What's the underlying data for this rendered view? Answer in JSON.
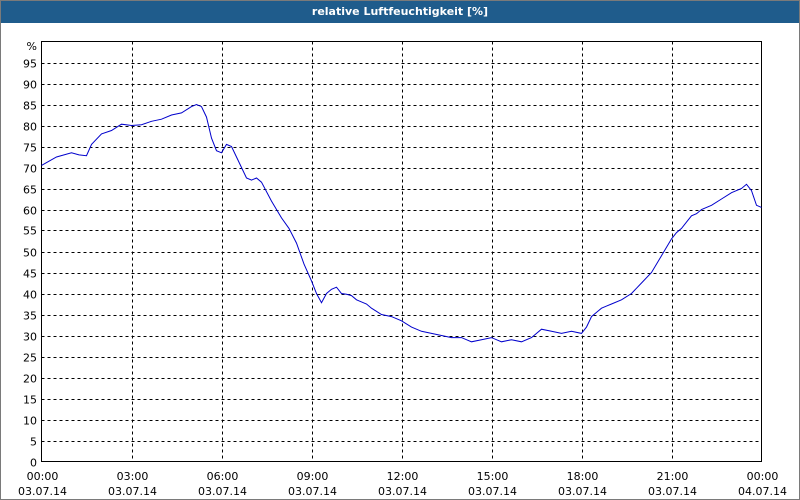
{
  "colors": {
    "title_bar": "#1F5C8C",
    "title_text": "#FFFFFF",
    "series": "#0000CC",
    "grid": "#000000",
    "background": "#FFFFFF"
  },
  "chart_data": {
    "type": "line",
    "title": "relative Luftfeuchtigkeit [%]",
    "y_unit_label": "%",
    "ylim": [
      0,
      100
    ],
    "y_ticks": [
      0,
      5,
      10,
      15,
      20,
      25,
      30,
      35,
      40,
      45,
      50,
      55,
      60,
      65,
      70,
      75,
      80,
      85,
      90,
      95
    ],
    "xlim": [
      "2014-07-03 00:00",
      "2014-07-04 00:00"
    ],
    "x_ticks": [
      {
        "time": "00:00",
        "date": "03.07.14"
      },
      {
        "time": "03:00",
        "date": "03.07.14"
      },
      {
        "time": "06:00",
        "date": "03.07.14"
      },
      {
        "time": "09:00",
        "date": "03.07.14"
      },
      {
        "time": "12:00",
        "date": "03.07.14"
      },
      {
        "time": "15:00",
        "date": "03.07.14"
      },
      {
        "time": "18:00",
        "date": "03.07.14"
      },
      {
        "time": "21:00",
        "date": "03.07.14"
      },
      {
        "time": "00:00",
        "date": "04.07.14"
      }
    ],
    "grid": true,
    "series": [
      {
        "x": [
          "00:00",
          "00:30",
          "01:00",
          "01:15",
          "01:30",
          "01:40",
          "02:00",
          "02:20",
          "02:40",
          "03:00",
          "03:20",
          "03:40",
          "04:00",
          "04:20",
          "04:40",
          "05:00",
          "05:10",
          "05:20",
          "05:30",
          "05:40",
          "05:50",
          "06:00",
          "06:10",
          "06:20",
          "06:30",
          "06:40",
          "06:50",
          "07:00",
          "07:10",
          "07:20",
          "07:40",
          "08:00",
          "08:15",
          "08:30",
          "08:45",
          "09:00",
          "09:10",
          "09:20",
          "09:30",
          "09:40",
          "09:50",
          "10:00",
          "10:10",
          "10:20",
          "10:30",
          "10:40",
          "10:50",
          "11:00",
          "11:20",
          "11:40",
          "12:00",
          "12:20",
          "12:40",
          "13:00",
          "13:20",
          "13:40",
          "14:00",
          "14:20",
          "14:40",
          "15:00",
          "15:20",
          "15:40",
          "16:00",
          "16:20",
          "16:40",
          "17:00",
          "17:20",
          "17:40",
          "18:00",
          "18:10",
          "18:20",
          "18:30",
          "18:40",
          "18:50",
          "19:00",
          "19:20",
          "19:40",
          "20:00",
          "20:20",
          "20:40",
          "21:00",
          "21:10",
          "21:20",
          "21:30",
          "21:40",
          "21:50",
          "22:00",
          "22:20",
          "22:40",
          "23:00",
          "23:20",
          "23:30",
          "23:40",
          "23:50",
          "24:00"
        ],
        "y": [
          70.5,
          72.5,
          73.5,
          73.0,
          72.8,
          75.5,
          78.0,
          78.8,
          80.3,
          80.0,
          80.2,
          81.0,
          81.5,
          82.5,
          83.0,
          84.5,
          85.0,
          84.5,
          82.0,
          77.0,
          74.0,
          73.5,
          75.5,
          75.0,
          72.5,
          70.0,
          67.5,
          67.0,
          67.5,
          66.5,
          62.0,
          58.0,
          55.5,
          52.0,
          47.0,
          43.0,
          40.0,
          37.8,
          40.0,
          41.0,
          41.5,
          40.0,
          39.8,
          39.5,
          38.5,
          38.0,
          37.5,
          36.5,
          35.0,
          34.5,
          33.5,
          32.0,
          31.0,
          30.5,
          30.0,
          29.5,
          29.5,
          28.5,
          29.0,
          29.5,
          28.5,
          29.0,
          28.5,
          29.5,
          31.5,
          31.0,
          30.5,
          31.0,
          30.5,
          32.0,
          34.5,
          35.5,
          36.5,
          37.0,
          37.5,
          38.5,
          40.0,
          42.5,
          45.0,
          49.0,
          53.0,
          54.5,
          55.5,
          57.0,
          58.5,
          59.0,
          60.0,
          61.0,
          62.5,
          64.0,
          65.0,
          66.0,
          64.5,
          61.0,
          60.5
        ]
      }
    ]
  }
}
